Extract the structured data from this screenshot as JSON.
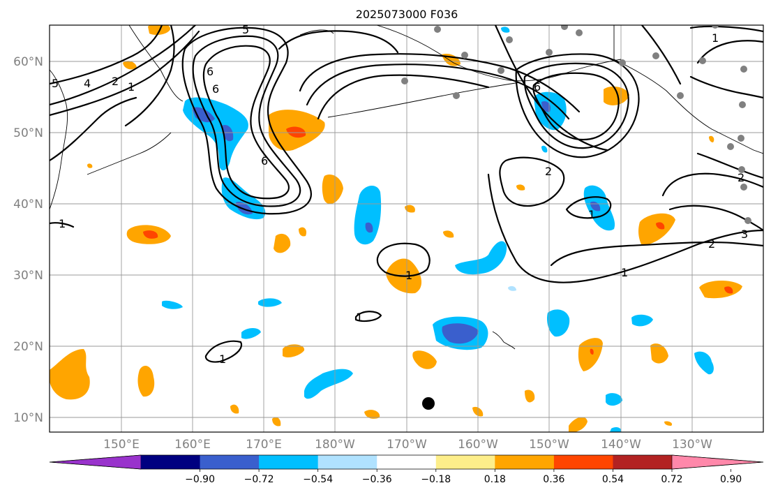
{
  "title": "2025073000 F036",
  "lat_labels": [
    "10°N",
    "20°N",
    "30°N",
    "40°N",
    "50°N",
    "60°N"
  ],
  "lon_labels": [
    "150°E",
    "160°E",
    "170°E",
    "180°W",
    "170°W",
    "160°W",
    "150°W",
    "140°W",
    "130°W"
  ],
  "colorbar": {
    "ticks": [
      "−0.90",
      "−0.72",
      "−0.54",
      "−0.36",
      "−0.18",
      "0.18",
      "0.36",
      "0.54",
      "0.72",
      "0.90"
    ],
    "colors": [
      "#9933cc",
      "#000080",
      "#3a5fcd",
      "#00bfff",
      "#b0e2ff",
      "#ffffff",
      "#fdee8a",
      "#ffa500",
      "#ff4500",
      "#b22222",
      "#ff88aa"
    ]
  },
  "contour_labels": [
    "5",
    "4",
    "2",
    "1",
    "6",
    "6",
    "6",
    "5",
    "6",
    "2",
    "1",
    "1",
    "1",
    "2",
    "3",
    "1",
    "1",
    "1",
    "1",
    "2"
  ],
  "colors": {
    "station": "#808080",
    "contour": "#000000",
    "grid": "#999999"
  }
}
